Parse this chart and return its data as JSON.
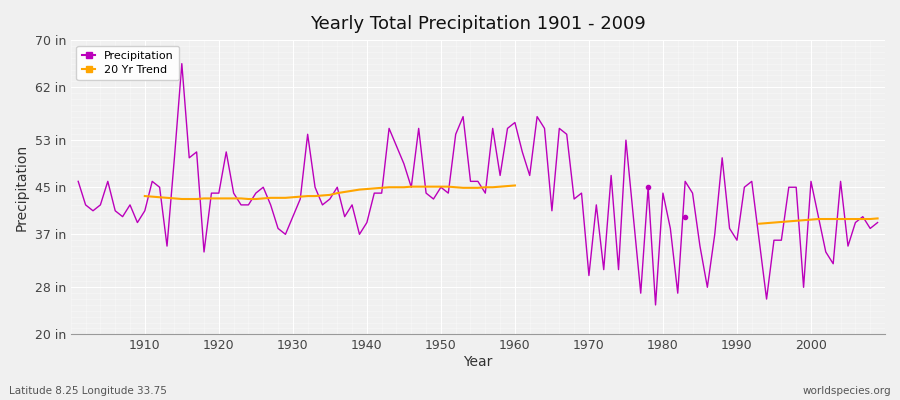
{
  "title": "Yearly Total Precipitation 1901 - 2009",
  "xlabel": "Year",
  "ylabel": "Precipitation",
  "subtitle_left": "Latitude 8.25 Longitude 33.75",
  "subtitle_right": "worldspecies.org",
  "ylim": [
    20,
    70
  ],
  "yticks": [
    20,
    28,
    37,
    45,
    53,
    62,
    70
  ],
  "ytick_labels": [
    "20 in",
    "28 in",
    "37 in",
    "45 in",
    "53 in",
    "62 in",
    "70 in"
  ],
  "xlim": [
    1900,
    2010
  ],
  "bg_color": "#f0f0f0",
  "plot_bg_color": "#f0f0f0",
  "line_color": "#bb00bb",
  "trend_color": "#ffa500",
  "years": [
    1901,
    1902,
    1903,
    1904,
    1905,
    1906,
    1907,
    1908,
    1909,
    1910,
    1911,
    1912,
    1913,
    1914,
    1915,
    1916,
    1917,
    1918,
    1919,
    1920,
    1921,
    1922,
    1923,
    1924,
    1925,
    1926,
    1927,
    1928,
    1929,
    1930,
    1931,
    1932,
    1933,
    1934,
    1935,
    1936,
    1937,
    1938,
    1939,
    1940,
    1941,
    1942,
    1943,
    1944,
    1945,
    1946,
    1947,
    1948,
    1949,
    1950,
    1951,
    1952,
    1953,
    1954,
    1955,
    1956,
    1957,
    1958,
    1959,
    1960,
    1961,
    1962,
    1963,
    1964,
    1965,
    1966,
    1967,
    1968,
    1969,
    1970,
    1971,
    1972,
    1973,
    1974,
    1975,
    1976,
    1977,
    1978,
    1979,
    1980,
    1981,
    1982,
    1983,
    1984,
    1985,
    1986,
    1987,
    1988,
    1989,
    1990,
    1991,
    1992,
    1993,
    1994,
    1995,
    1996,
    1997,
    1998,
    1999,
    2000,
    2001,
    2002,
    2003,
    2004,
    2005,
    2006,
    2007,
    2008,
    2009
  ],
  "precip": [
    46,
    42,
    41,
    42,
    46,
    41,
    40,
    42,
    39,
    41,
    46,
    45,
    35,
    50,
    66,
    50,
    51,
    34,
    44,
    44,
    51,
    44,
    42,
    42,
    44,
    45,
    42,
    38,
    37,
    40,
    43,
    54,
    45,
    42,
    43,
    45,
    40,
    42,
    37,
    39,
    44,
    44,
    55,
    52,
    49,
    45,
    55,
    44,
    43,
    45,
    44,
    54,
    57,
    46,
    46,
    44,
    55,
    47,
    55,
    56,
    51,
    47,
    57,
    55,
    41,
    55,
    54,
    43,
    44,
    30,
    42,
    31,
    47,
    31,
    53,
    40,
    27,
    45,
    25,
    44,
    38,
    27,
    46,
    44,
    35,
    28,
    37,
    50,
    38,
    36,
    45,
    46,
    36,
    26,
    36,
    36,
    45,
    45,
    28,
    46,
    40,
    34,
    32,
    46,
    35,
    39,
    40,
    38,
    39
  ],
  "trend_seg1_years": [
    1910,
    1911,
    1912,
    1913,
    1914,
    1915,
    1916,
    1917,
    1918,
    1919,
    1920,
    1921,
    1922,
    1923,
    1924,
    1925,
    1926,
    1927,
    1928,
    1929,
    1930,
    1931,
    1932,
    1933,
    1934,
    1935,
    1936,
    1937,
    1938,
    1939,
    1940,
    1941,
    1942,
    1943,
    1944,
    1945,
    1946,
    1947,
    1948,
    1949,
    1950,
    1951,
    1952,
    1953,
    1954,
    1955,
    1956,
    1957,
    1958,
    1959,
    1960
  ],
  "trend_seg1_vals": [
    43.5,
    43.4,
    43.3,
    43.2,
    43.1,
    43.0,
    43.0,
    43.0,
    43.1,
    43.1,
    43.1,
    43.1,
    43.1,
    43.1,
    43.0,
    43.0,
    43.1,
    43.2,
    43.2,
    43.2,
    43.3,
    43.4,
    43.5,
    43.5,
    43.6,
    43.7,
    44.0,
    44.2,
    44.4,
    44.6,
    44.7,
    44.8,
    44.9,
    45.0,
    45.0,
    45.0,
    45.1,
    45.1,
    45.1,
    45.1,
    45.1,
    45.1,
    45.0,
    44.9,
    44.9,
    44.9,
    45.0,
    45.0,
    45.1,
    45.2,
    45.3
  ],
  "trend_seg2_years": [
    1993,
    1994,
    1995,
    1996,
    1997,
    1998,
    1999,
    2000,
    2001,
    2002,
    2003,
    2004,
    2005,
    2006,
    2007,
    2008,
    2009
  ],
  "trend_seg2_vals": [
    38.8,
    38.9,
    39.0,
    39.1,
    39.2,
    39.3,
    39.4,
    39.5,
    39.6,
    39.6,
    39.6,
    39.6,
    39.6,
    39.6,
    39.6,
    39.6,
    39.7
  ],
  "isolated_points": [
    {
      "year": 1978,
      "val": 45
    },
    {
      "year": 1983,
      "val": 40
    }
  ]
}
